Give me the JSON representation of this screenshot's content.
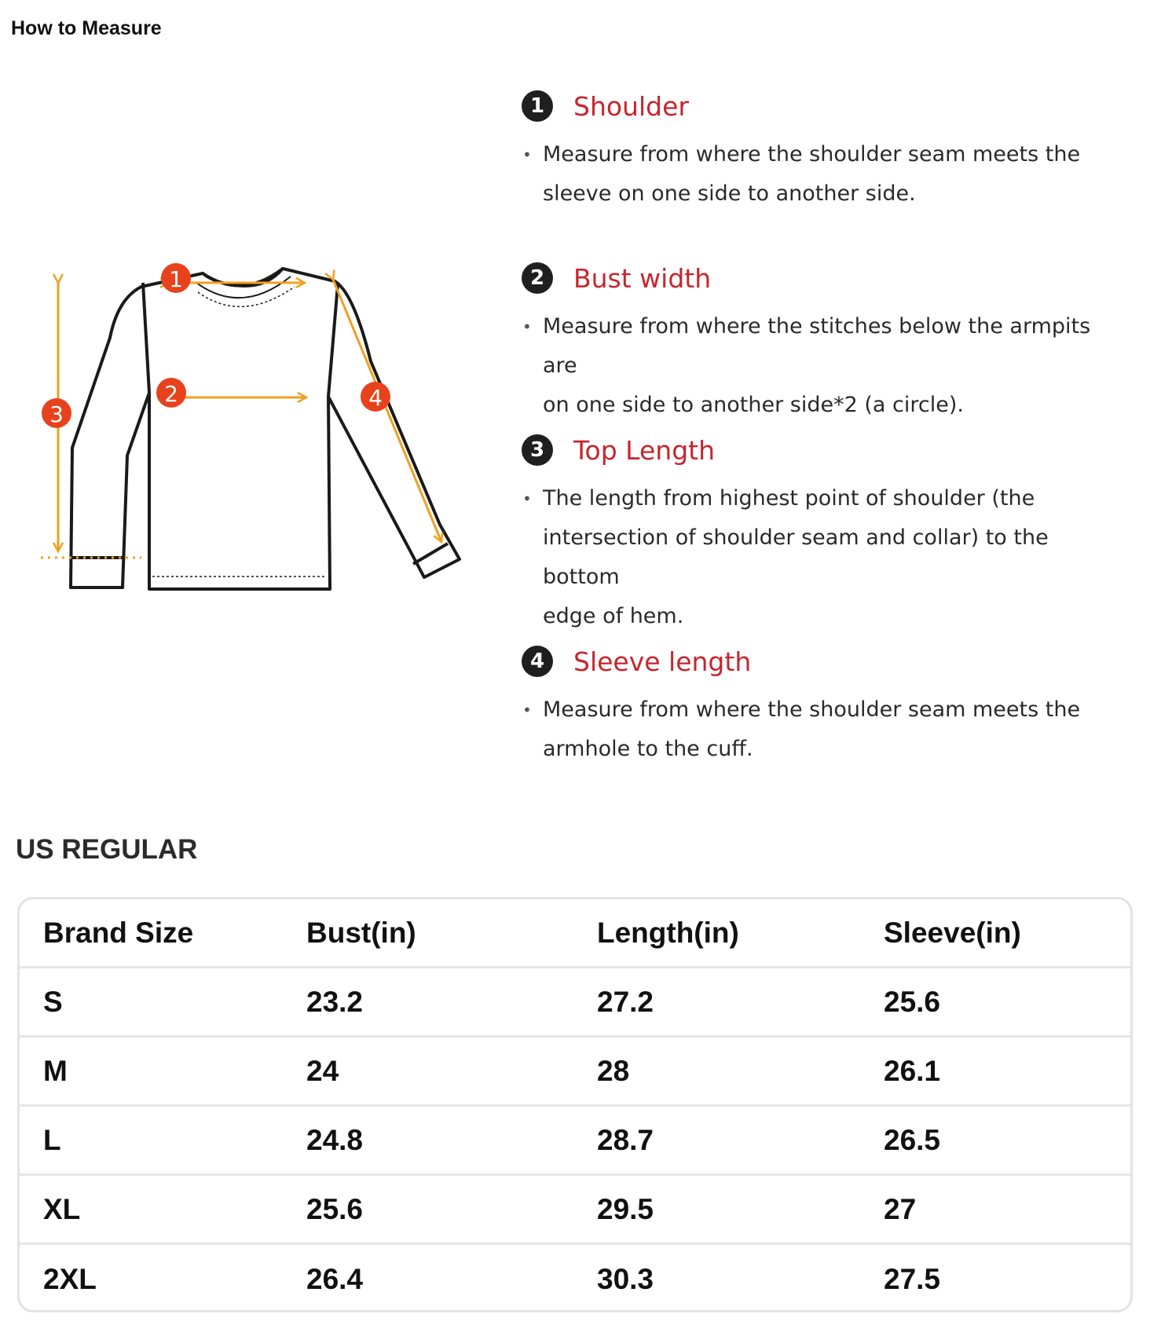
{
  "page_title": "How to Measure",
  "diagram": {
    "markers": [
      "1",
      "2",
      "3",
      "4"
    ],
    "colors": {
      "line": "#f0a020",
      "marker": "#e8421d",
      "outline": "#1a1a1a"
    }
  },
  "measurements": [
    {
      "number": "1",
      "title": "Shoulder",
      "lines": [
        "Measure from where the shoulder seam meets the",
        "sleeve on one side to another side."
      ]
    },
    {
      "number": "2",
      "title": "Bust width",
      "lines": [
        "Measure from where the stitches below the armpits are",
        "on one side to another side*2 (a circle)."
      ]
    },
    {
      "number": "3",
      "title": "Top Length",
      "lines": [
        "The length from highest point of shoulder  (the",
        "intersection of shoulder seam and collar) to the bottom",
        "edge of hem."
      ]
    },
    {
      "number": "4",
      "title": "Sleeve length",
      "lines": [
        "Measure from where the shoulder seam meets the",
        "armhole to the cuff."
      ]
    }
  ],
  "size_chart": {
    "title": "US REGULAR",
    "headers": [
      "Brand Size",
      "Bust(in)",
      "Length(in)",
      "Sleeve(in)"
    ],
    "rows": [
      [
        "S",
        "23.2",
        "27.2",
        "25.6"
      ],
      [
        "M",
        "24",
        "28",
        "26.1"
      ],
      [
        "L",
        "24.8",
        "28.7",
        "26.5"
      ],
      [
        "XL",
        "25.6",
        "29.5",
        "27"
      ],
      [
        "2XL",
        "26.4",
        "30.3",
        "27.5"
      ]
    ]
  },
  "colors": {
    "title_red": "#c8252c",
    "badge": "#1f1f1f",
    "table_border": "#e3e3e3"
  }
}
